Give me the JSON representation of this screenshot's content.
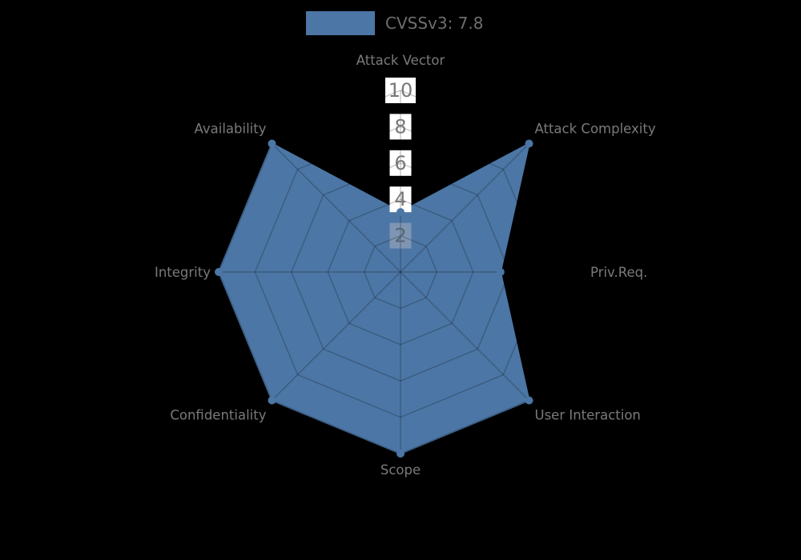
{
  "colors": {
    "background": "#000000",
    "series_fill": "#4c76a5",
    "grid_overlay": "rgba(0,0,0,0.22)",
    "axis_label": "#7a7a7a",
    "tick_label": "#787878",
    "tick_box": "#ffffff",
    "tick_box_overlapped": "#7e95b3",
    "tick_label_overlapped": "#566473",
    "legend_text": "#6e6e6e"
  },
  "chart_data": {
    "type": "radar",
    "title": "",
    "legend": {
      "label": "CVSSv3: 7.8",
      "position": "top-center"
    },
    "axes": [
      "Attack Vector",
      "Attack Complexity",
      "Priv.Req.",
      "User Interaction",
      "Scope",
      "Confidentiality",
      "Integrity",
      "Availability"
    ],
    "series": [
      {
        "name": "CVSSv3: 7.8",
        "values": [
          3.3,
          10,
          5.5,
          10,
          10,
          10,
          10,
          10
        ]
      }
    ],
    "radial_ticks": [
      2,
      4,
      6,
      8,
      10
    ],
    "rlim": [
      0,
      10
    ],
    "grid": true,
    "grid_shape": "polygon",
    "markers": true
  }
}
